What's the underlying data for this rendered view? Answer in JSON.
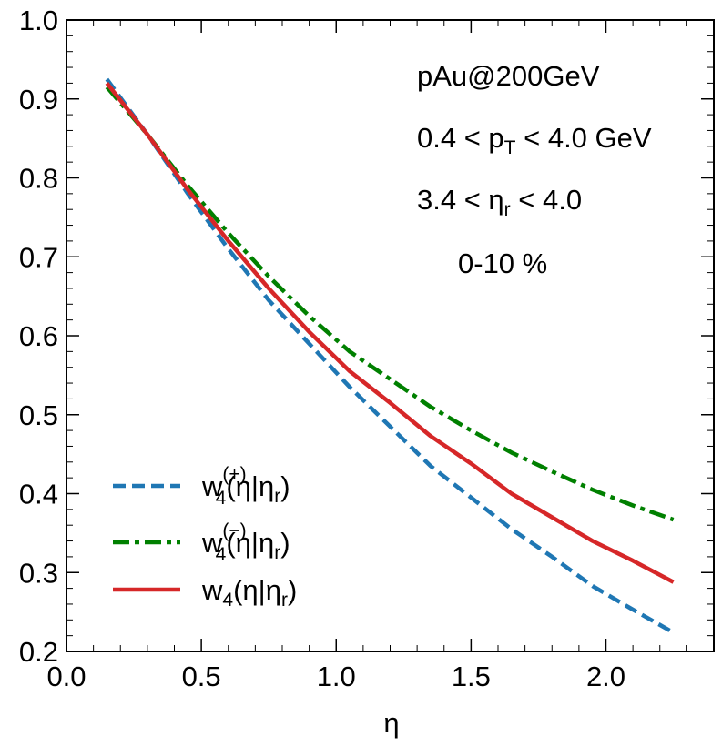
{
  "chart_data": {
    "type": "line",
    "xlabel": "η",
    "ylabel": "",
    "xlim": [
      0.0,
      2.4
    ],
    "ylim": [
      0.2,
      1.0
    ],
    "xticks": [
      "0.0",
      "0.5",
      "1.0",
      "1.5",
      "2.0"
    ],
    "xtick_values": [
      0.0,
      0.5,
      1.0,
      1.5,
      2.0
    ],
    "yticks": [
      "0.2",
      "0.3",
      "0.4",
      "0.5",
      "0.6",
      "0.7",
      "0.8",
      "0.9",
      "1.0"
    ],
    "ytick_values": [
      0.2,
      0.3,
      0.4,
      0.5,
      0.6,
      0.7,
      0.8,
      0.9,
      1.0
    ],
    "legend_position": "bottom-left",
    "annotations": {
      "system": "pAu@200GeV",
      "pt_left": "0.4 < p",
      "pt_sub": "T",
      "pt_right": " < 4.0 GeV",
      "eta_left": "3.4 < η",
      "eta_sub": "r",
      "eta_right": " < 4.0",
      "centrality": "0-10 %"
    },
    "series": [
      {
        "name": "w4(+)(η|ηr)",
        "legend_base": "w",
        "legend_sub": "4",
        "legend_sup": "(+)",
        "legend_rest": "(η|η",
        "legend_rest_sub": "r",
        "legend_close": ")",
        "color": "#1f77b4",
        "style": "dashed",
        "x": [
          0.15,
          0.3,
          0.45,
          0.6,
          0.75,
          0.9,
          1.05,
          1.2,
          1.35,
          1.5,
          1.65,
          1.8,
          1.95,
          2.1,
          2.25
        ],
        "y": [
          0.925,
          0.855,
          0.78,
          0.71,
          0.645,
          0.59,
          0.535,
          0.485,
          0.435,
          0.395,
          0.355,
          0.32,
          0.283,
          0.253,
          0.224
        ]
      },
      {
        "name": "w4(-)(η|ηr)",
        "legend_base": "w",
        "legend_sub": "4",
        "legend_sup": "(−)",
        "legend_rest": "(η|η",
        "legend_rest_sub": "r",
        "legend_close": ")",
        "color": "#008000",
        "style": "dashdot",
        "x": [
          0.15,
          0.3,
          0.45,
          0.6,
          0.75,
          0.9,
          1.05,
          1.2,
          1.35,
          1.5,
          1.65,
          1.8,
          1.95,
          2.1,
          2.25
        ],
        "y": [
          0.915,
          0.855,
          0.79,
          0.73,
          0.675,
          0.625,
          0.58,
          0.545,
          0.51,
          0.48,
          0.452,
          0.428,
          0.405,
          0.385,
          0.367
        ]
      },
      {
        "name": "w4(η|ηr)",
        "legend_base": "w",
        "legend_sub": "4",
        "legend_sup": "",
        "legend_rest": "(η|η",
        "legend_rest_sub": "r",
        "legend_close": ")",
        "color": "#d62728",
        "style": "solid",
        "x": [
          0.15,
          0.3,
          0.45,
          0.6,
          0.75,
          0.9,
          1.05,
          1.2,
          1.35,
          1.5,
          1.65,
          1.8,
          1.95,
          2.1,
          2.25
        ],
        "y": [
          0.92,
          0.855,
          0.785,
          0.72,
          0.66,
          0.605,
          0.555,
          0.515,
          0.473,
          0.438,
          0.4,
          0.37,
          0.34,
          0.315,
          0.288
        ]
      }
    ]
  }
}
